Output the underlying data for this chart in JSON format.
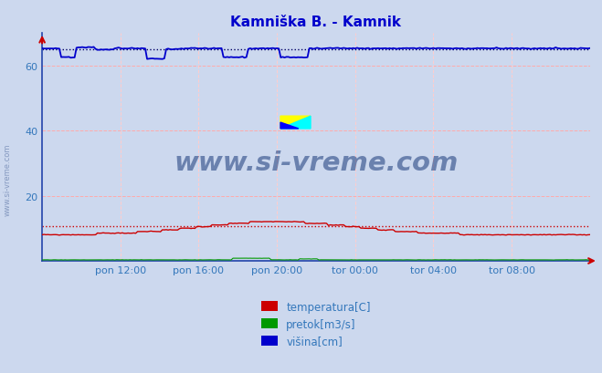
{
  "title": "Kamniška B. - Kamnik",
  "title_color": "#0000cc",
  "bg_color": "#ccd8ee",
  "plot_bg_color": "#ccd8ee",
  "ylim": [
    0,
    70
  ],
  "yticks": [
    20,
    40,
    60
  ],
  "xtick_labels": [
    "pon 12:00",
    "pon 16:00",
    "pon 20:00",
    "tor 00:00",
    "tor 04:00",
    "tor 08:00"
  ],
  "n_points": 288,
  "temp_color": "#cc0000",
  "pretok_color": "#009900",
  "visina_color": "#0000cc",
  "ref_temp_val": 10.5,
  "ref_visina_val": 65.0,
  "ref_temp_color": "#cc0000",
  "ref_visina_color": "#000066",
  "grid_h_color": "#ffaaaa",
  "grid_v_color": "#ffcccc",
  "legend_labels": [
    "temperatura[C]",
    "pretok[m3/s]",
    "višina[cm]"
  ],
  "legend_colors": [
    "#cc0000",
    "#009900",
    "#0000cc"
  ],
  "watermark": "www.si-vreme.com",
  "watermark_color": "#1a3a7a",
  "axis_label_color": "#3377bb",
  "title_fontsize": 11,
  "axis_label_fontsize": 8,
  "spine_color": "#2244aa",
  "arrow_color": "#cc0000"
}
